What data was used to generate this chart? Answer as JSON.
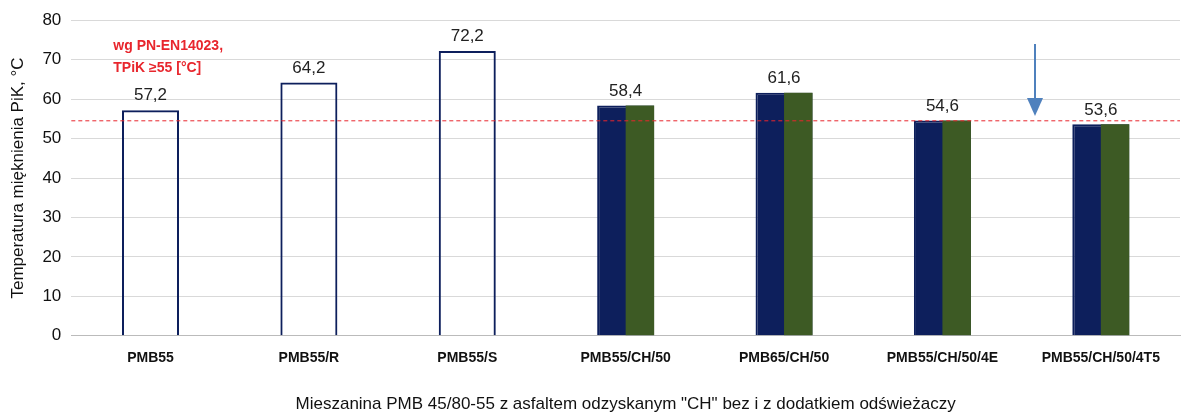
{
  "chart_data": {
    "type": "bar",
    "xlabel": "Mieszanina PMB 45/80-55 z asfaltem odzyskanym \"CH\" bez i z dodatkiem odświeżaczy",
    "ylabel": "Temperatura mięknienia PiK, °C",
    "categories": [
      "PMB55",
      "PMB55/R",
      "PMB55/S",
      "PMB55/CH/50",
      "PMB65/CH/50",
      "PMB55/CH/50/4E",
      "PMB55/CH/50/4T5"
    ],
    "series": [
      {
        "colors": [
          "#0d1f5c",
          "#0d1f5c",
          "#0d1f5c",
          "#0d1f5c",
          "#0d1f5c",
          "#0d1f5c",
          "#0d1f5c"
        ],
        "values": [
          57.2,
          64.2,
          72.2,
          58.4,
          61.6,
          54.6,
          53.6
        ],
        "value_labels": [
          "57,2",
          "64,2",
          "72,2",
          "58,4",
          "61,6",
          "54,6",
          "53,6"
        ]
      },
      {
        "color": "#3d5a24",
        "values": [
          null,
          null,
          null,
          58.4,
          61.6,
          54.6,
          53.6
        ]
      }
    ],
    "ylim": [
      0,
      80
    ],
    "yticks": [
      0,
      10,
      20,
      30,
      40,
      50,
      60,
      70,
      80
    ],
    "grid": "y",
    "ref_lines": [
      {
        "axis": "y",
        "value": 54.5,
        "label": "wg PN-EN14023,\nTPiK ≥55 [°C]",
        "color": "#e8262d",
        "line_style": "dashed"
      }
    ]
  }
}
